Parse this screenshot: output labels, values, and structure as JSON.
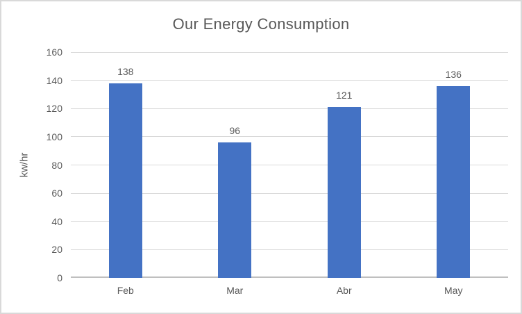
{
  "chart_data": {
    "type": "bar",
    "title": "Our Energy Consumption",
    "categories": [
      "Feb",
      "Mar",
      "Abr",
      "May"
    ],
    "values": [
      138,
      96,
      121,
      136
    ],
    "data_labels": [
      "138",
      "96",
      "121",
      "136"
    ],
    "xlabel": "",
    "ylabel": "kw/hr",
    "ylim": [
      0,
      160
    ],
    "ytick_step": 20,
    "ytick_labels": [
      "0",
      "20",
      "40",
      "60",
      "80",
      "100",
      "120",
      "140",
      "160"
    ],
    "grid": true,
    "legend": "none",
    "colors": {
      "bar": "#4472C4",
      "text": "#595959",
      "gridline": "#D9D9D9",
      "axis_line": "#BFBFBF",
      "background": "#FFFFFF",
      "frame_border": "#D9D9D9"
    }
  }
}
